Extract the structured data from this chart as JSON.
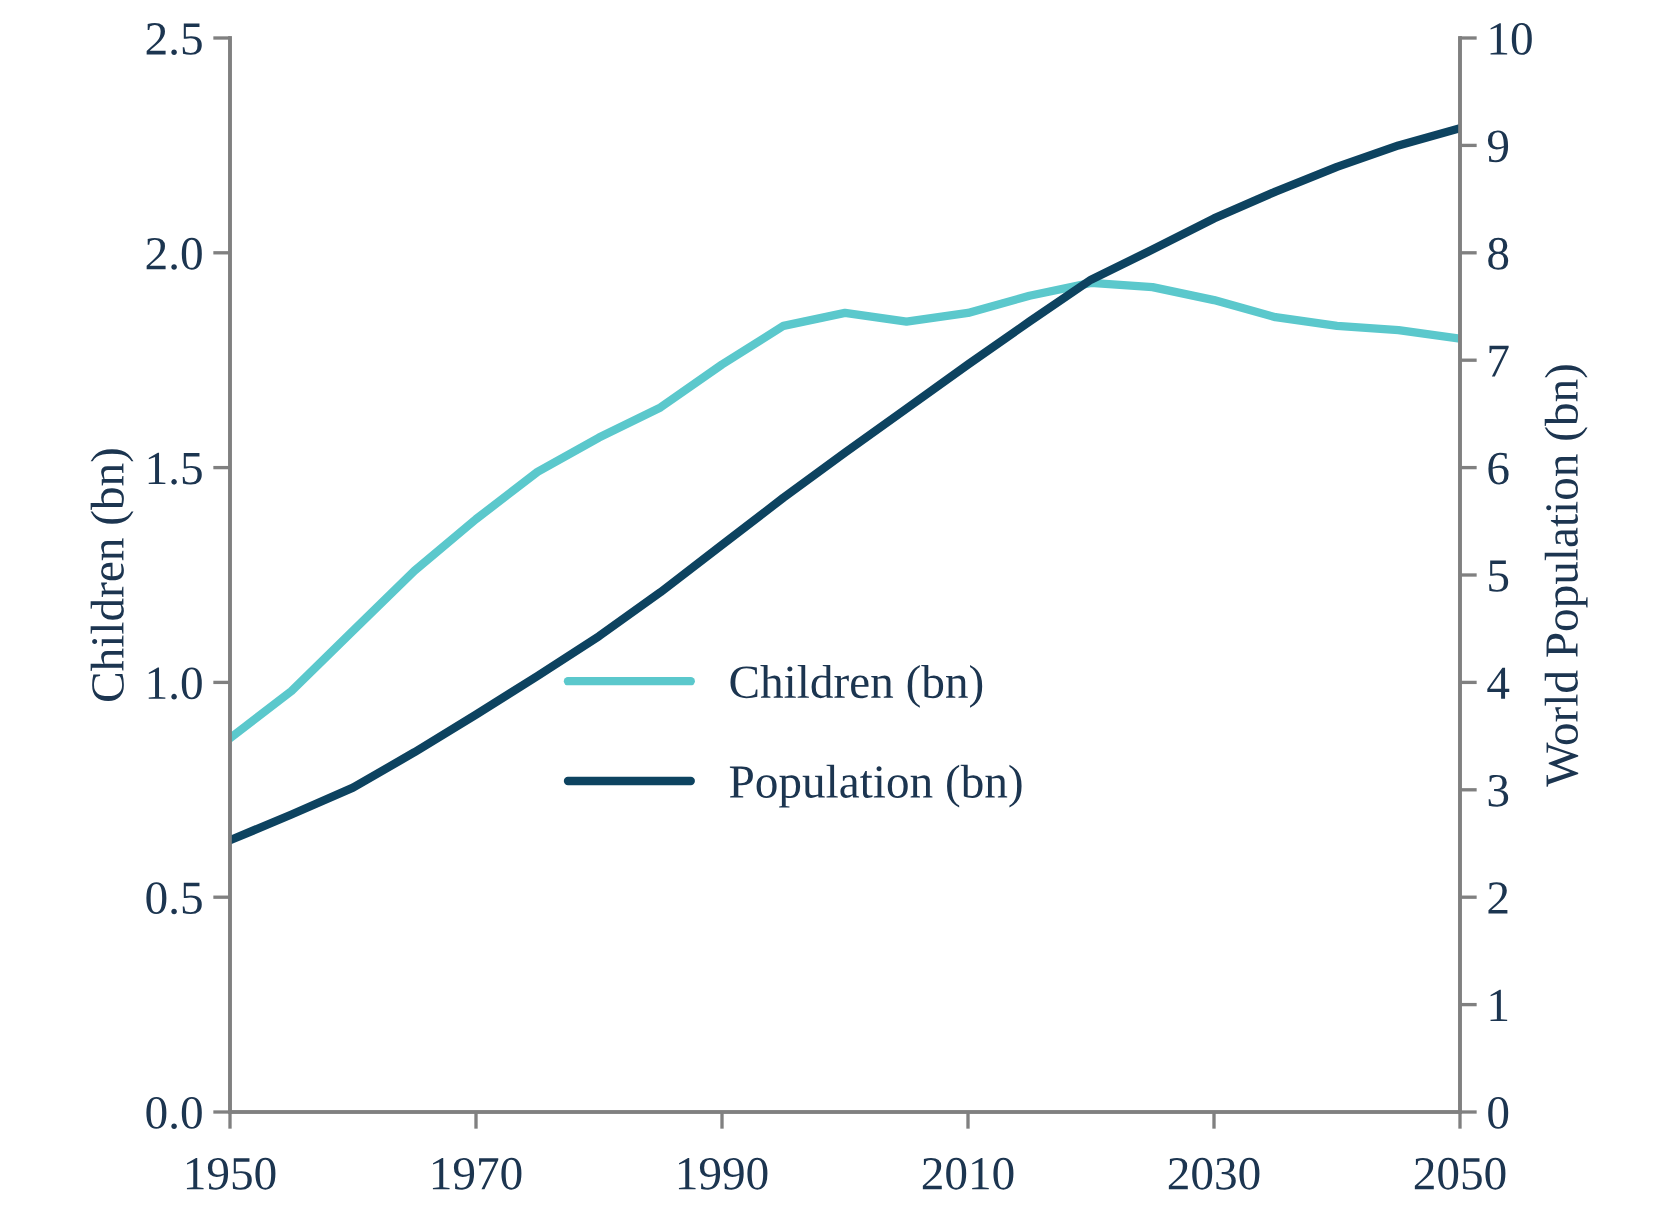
{
  "chart_data": {
    "type": "line",
    "x": [
      1950,
      1955,
      1960,
      1965,
      1970,
      1975,
      1980,
      1985,
      1990,
      1995,
      2000,
      2005,
      2010,
      2015,
      2020,
      2025,
      2030,
      2035,
      2040,
      2045,
      2050
    ],
    "series": [
      {
        "name": "Children (bn)",
        "color": "#5bc8cc",
        "values": [
          0.87,
          0.98,
          1.12,
          1.26,
          1.38,
          1.49,
          1.57,
          1.64,
          1.74,
          1.83,
          1.86,
          1.84,
          1.86,
          1.9,
          1.93,
          1.92,
          1.89,
          1.85,
          1.83,
          1.82,
          1.8
        ]
      },
      {
        "name": "Population (bn)",
        "color": "#0d4360",
        "axis": "y2",
        "values": [
          2.53,
          2.77,
          3.02,
          3.35,
          3.7,
          4.06,
          4.43,
          4.84,
          5.28,
          5.72,
          6.14,
          6.55,
          6.96,
          7.36,
          7.75,
          8.03,
          8.32,
          8.57,
          8.8,
          9.0,
          9.16
        ]
      }
    ],
    "xlim": [
      1950,
      2050
    ],
    "xticks": [
      1950,
      1970,
      1990,
      2010,
      2030,
      2050
    ],
    "ylim": [
      0,
      2.5
    ],
    "yticks": [
      {
        "value": 0,
        "label": "0.0"
      },
      {
        "value": 0.5,
        "label": "0.5"
      },
      {
        "value": 1,
        "label": "1.0"
      },
      {
        "value": 1.5,
        "label": "1.5"
      },
      {
        "value": 2,
        "label": "2.0"
      },
      {
        "value": 2.5,
        "label": "2.5"
      }
    ],
    "y2lim": [
      0,
      10
    ],
    "y2ticks": [
      0,
      1,
      2,
      3,
      4,
      5,
      6,
      7,
      8,
      9,
      10
    ],
    "ylabel": "Children (bn)",
    "y2label": "World Population (bn)",
    "legend": "center",
    "grid": false,
    "marker": "none",
    "line_style": "solid"
  }
}
